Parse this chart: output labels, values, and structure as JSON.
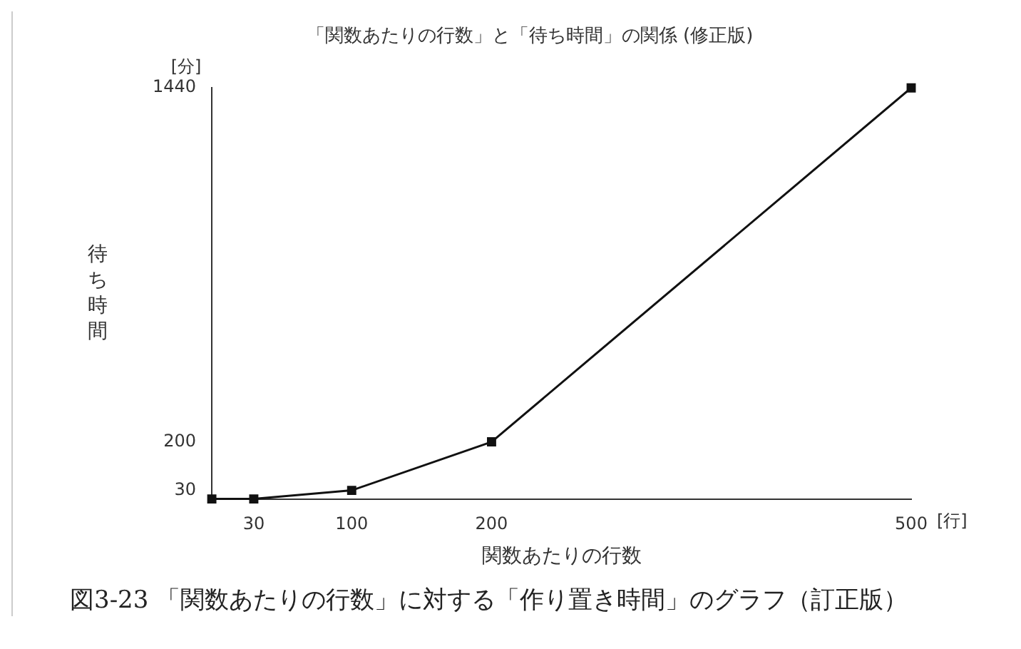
{
  "chart_data": {
    "type": "line",
    "title": "「関数あたりの行数」と「待ち時間」の関係 (修正版)",
    "xlabel": "関数あたりの行数",
    "ylabel": "待ち時間",
    "x": [
      0,
      30,
      100,
      200,
      500
    ],
    "series": [
      {
        "color": "#111111",
        "values": [
          0,
          0,
          30,
          200,
          1440
        ]
      }
    ],
    "xlim": [
      0,
      500
    ],
    "xticks": [
      30,
      100,
      200,
      500
    ],
    "ylim": [
      0,
      1440
    ],
    "yticks": [
      30,
      200,
      1440
    ],
    "marker": "square",
    "line_style": "solid",
    "annotations": [
      "[分]",
      "[行]",
      "図3-23 「関数あたりの行数」に対する「作り置き時間」のグラフ（訂正版）"
    ]
  }
}
